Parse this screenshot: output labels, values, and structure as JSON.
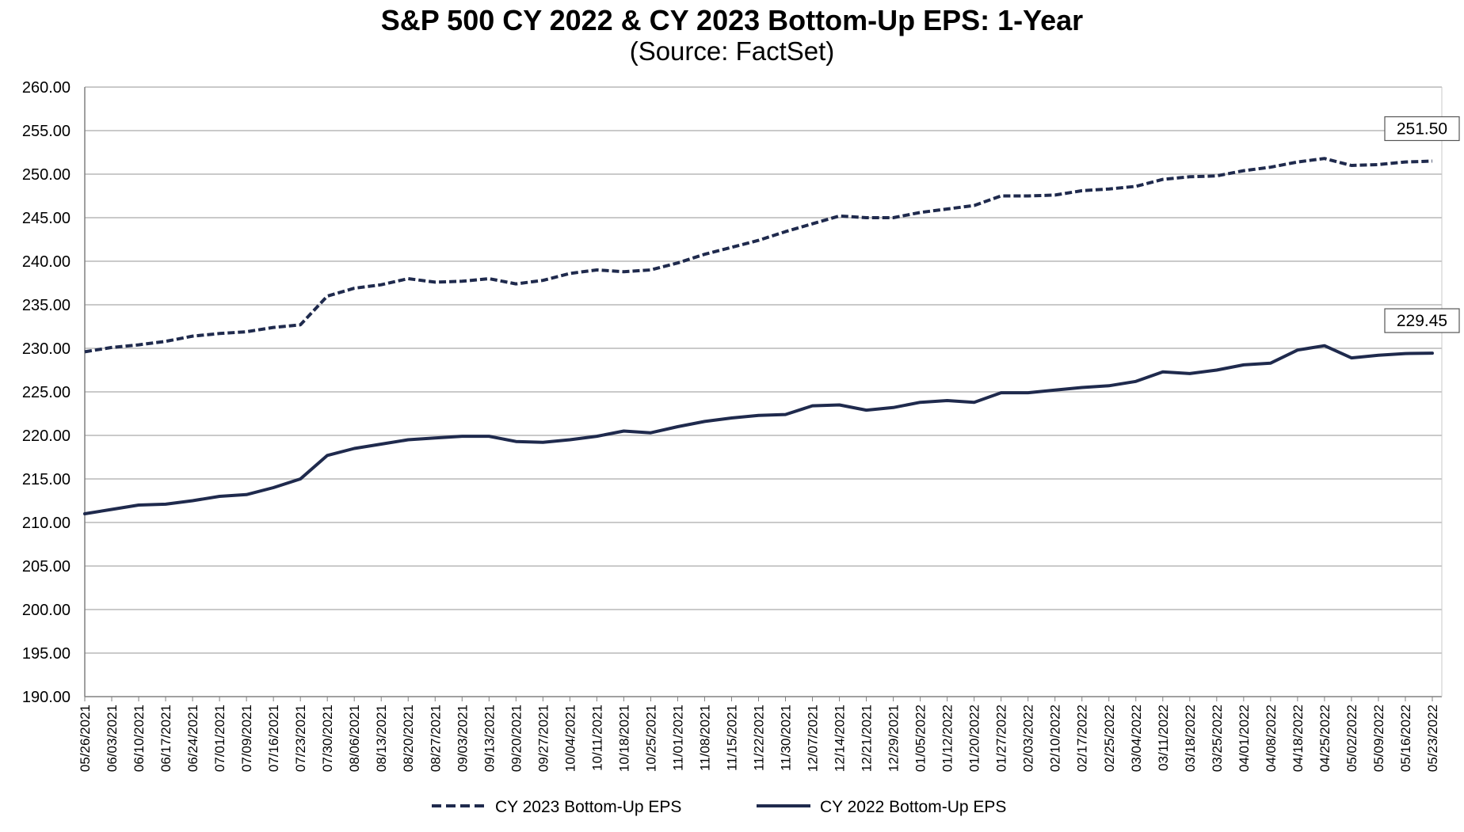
{
  "chart_data": {
    "type": "line",
    "title": "S&P 500 CY 2022 & CY 2023 Bottom-Up  EPS: 1-Year",
    "subtitle": "(Source: FactSet)",
    "xlabel": "",
    "ylabel": "",
    "ylim": [
      190,
      260
    ],
    "ytick_step": 5,
    "grid": true,
    "legend_position": "bottom",
    "x": [
      "05/26/2021",
      "06/03/2021",
      "06/10/2021",
      "06/17/2021",
      "06/24/2021",
      "07/01/2021",
      "07/09/2021",
      "07/16/2021",
      "07/23/2021",
      "07/30/2021",
      "08/06/2021",
      "08/13/2021",
      "08/20/2021",
      "08/27/2021",
      "09/03/2021",
      "09/13/2021",
      "09/20/2021",
      "09/27/2021",
      "10/04/2021",
      "10/11/2021",
      "10/18/2021",
      "10/25/2021",
      "11/01/2021",
      "11/08/2021",
      "11/15/2021",
      "11/22/2021",
      "11/30/2021",
      "12/07/2021",
      "12/14/2021",
      "12/21/2021",
      "12/29/2021",
      "01/05/2022",
      "01/12/2022",
      "01/20/2022",
      "01/27/2022",
      "02/03/2022",
      "02/10/2022",
      "02/17/2022",
      "02/25/2022",
      "03/04/2022",
      "03/11/2022",
      "03/18/2022",
      "03/25/2022",
      "04/01/2022",
      "04/08/2022",
      "04/18/2022",
      "04/25/2022",
      "05/02/2022",
      "05/09/2022",
      "05/16/2022",
      "05/23/2022"
    ],
    "series": [
      {
        "name": "CY 2023 Bottom-Up EPS",
        "color": "#1f2a4d",
        "dash": "dashed",
        "end_label": "251.50",
        "values": [
          229.6,
          230.1,
          230.4,
          230.8,
          231.4,
          231.7,
          231.9,
          232.4,
          232.7,
          236.0,
          236.9,
          237.3,
          238.0,
          237.6,
          237.7,
          238.0,
          237.4,
          237.8,
          238.6,
          239.0,
          238.8,
          239.0,
          239.8,
          240.8,
          241.6,
          242.4,
          243.4,
          244.3,
          245.2,
          245.0,
          245.0,
          245.6,
          246.0,
          246.4,
          247.5,
          247.5,
          247.6,
          248.1,
          248.3,
          248.6,
          249.4,
          249.7,
          249.8,
          250.4,
          250.8,
          251.4,
          251.8,
          251.0,
          251.1,
          251.4,
          251.5
        ]
      },
      {
        "name": "CY 2022 Bottom-Up EPS",
        "color": "#1f2a4d",
        "dash": "solid",
        "end_label": "229.45",
        "values": [
          211.0,
          211.5,
          212.0,
          212.1,
          212.5,
          213.0,
          213.2,
          214.0,
          215.0,
          217.7,
          218.5,
          219.0,
          219.5,
          219.7,
          219.9,
          219.9,
          219.3,
          219.2,
          219.5,
          219.9,
          220.5,
          220.3,
          221.0,
          221.6,
          222.0,
          222.3,
          222.4,
          223.4,
          223.5,
          222.9,
          223.2,
          223.8,
          224.0,
          223.8,
          224.9,
          224.9,
          225.2,
          225.5,
          225.7,
          226.2,
          227.3,
          227.1,
          227.5,
          228.1,
          228.3,
          229.8,
          230.3,
          228.9,
          229.2,
          229.4,
          229.45
        ]
      }
    ]
  }
}
